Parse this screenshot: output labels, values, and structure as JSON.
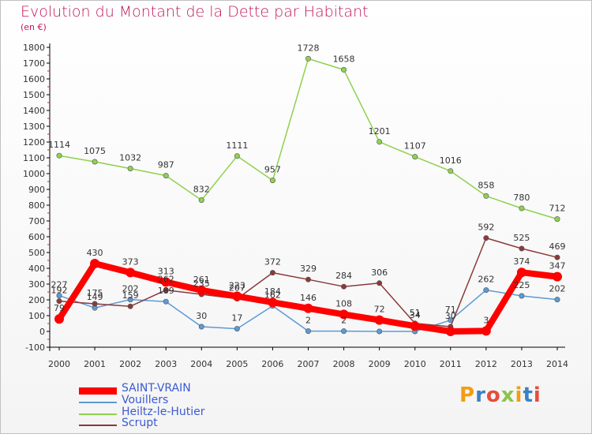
{
  "header": {
    "title": "Evolution du Montant de la Dette par Habitant",
    "subtitle": "(en €)"
  },
  "logo": {
    "text": "Proxiti",
    "colors": [
      "#f39c12",
      "#3b82c4",
      "#e74c3c",
      "#8bc34a"
    ]
  },
  "chart_data": {
    "type": "line",
    "x": [
      "2000",
      "2001",
      "2002",
      "2003",
      "2004",
      "2005",
      "2006",
      "2007",
      "2008",
      "2009",
      "2010",
      "2011",
      "2012",
      "2013",
      "2014"
    ],
    "ylim": [
      -100,
      1800
    ],
    "yticks": [
      "-100",
      "0",
      "100",
      "200",
      "300",
      "400",
      "500",
      "600",
      "700",
      "800",
      "900",
      "1000",
      "1100",
      "1200",
      "1300",
      "1400",
      "1500",
      "1600",
      "1700",
      "1800"
    ],
    "grid": false,
    "legend_position": "bottom-left",
    "series": [
      {
        "name": "SAINT-VRAIN",
        "color": "#ff0000",
        "values": [
          79,
          430,
          373,
          313,
          261,
          223,
          184,
          146,
          108,
          72,
          34,
          0,
          3,
          374,
          347
        ]
      },
      {
        "name": "Vouillers",
        "color": "#5b9bd5",
        "values": [
          227,
          149,
          202,
          189,
          30,
          17,
          162,
          2,
          2,
          0,
          0,
          71,
          262,
          225,
          202
        ]
      },
      {
        "name": "Heiltz-le-Hutier",
        "color": "#8fd14f",
        "values": [
          1114,
          1075,
          1032,
          987,
          832,
          1111,
          957,
          1728,
          1658,
          1201,
          1107,
          1016,
          858,
          780,
          712
        ]
      },
      {
        "name": "Scrupt",
        "color": "#8b3a3a",
        "values": [
          192,
          175,
          159,
          262,
          235,
          207,
          372,
          329,
          284,
          306,
          51,
          30,
          592,
          525,
          469
        ]
      }
    ],
    "labels": [
      {
        "series": 0,
        "text": [
          "79",
          "430",
          "373",
          "313",
          "261",
          "223",
          "184",
          "146",
          "108",
          "72",
          "34",
          "",
          "3",
          "374",
          "347"
        ]
      },
      {
        "series": 1,
        "text": [
          "227",
          "149",
          "202",
          "189",
          "30",
          "17",
          "162",
          "2",
          "2",
          "",
          "",
          "71",
          "262",
          "225",
          "202"
        ]
      },
      {
        "series": 2,
        "text": [
          "1114",
          "1075",
          "1032",
          "987",
          "832",
          "1111",
          "957",
          "1728",
          "1658",
          "1201",
          "1107",
          "1016",
          "858",
          "780",
          "712"
        ]
      },
      {
        "series": 3,
        "text": [
          "192",
          "175",
          "159",
          "262",
          "235",
          "207",
          "372",
          "329",
          "284",
          "306",
          "51",
          "30",
          "592",
          "525",
          "469"
        ]
      }
    ]
  }
}
